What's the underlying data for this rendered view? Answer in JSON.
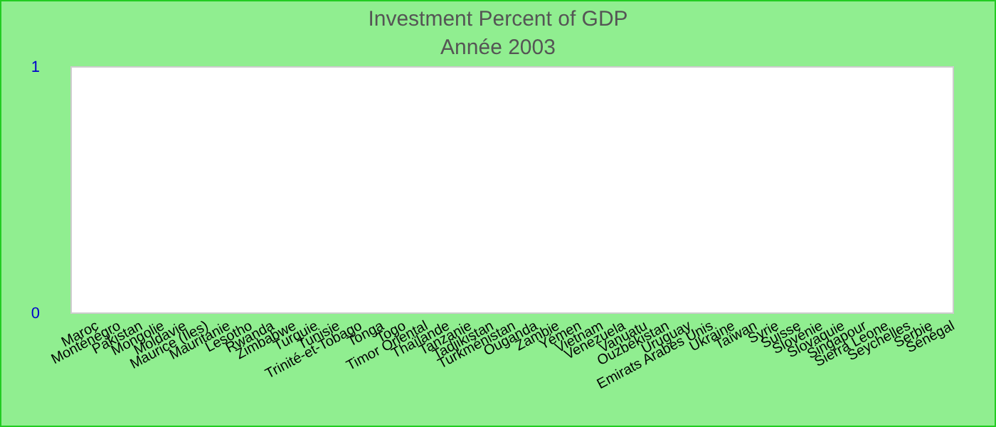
{
  "chart_data": {
    "type": "bar",
    "title": "Investment  Percent of GDP",
    "subtitle": "Année 2003",
    "categories": [
      "Maroc",
      "Monténégro",
      "Pakistan",
      "Mongolie",
      "Moldavie",
      "Maurice (Iles)",
      "Mauritanie",
      "Lesotho",
      "Rwanda",
      "Zimbabwe",
      "Turquie",
      "Tunisie",
      "Trinité-et-Tobago",
      "Tonga",
      "Togo",
      "Timor Oriental",
      "Thaïlande",
      "Tanzanie",
      "Tadjikistan",
      "Turkménistan",
      "Ouganda",
      "Zambie",
      "Yémen",
      "Vietnam",
      "Venezuela",
      "Vanuatu",
      "Ouzbékistan",
      "Uruguay",
      "Emirats Arabes Unis",
      "Ukraine",
      "Taïwan",
      "Syrie",
      "Suisse",
      "Slovénie",
      "Slovaquie",
      "Singapour",
      "Sierra Leone",
      "Seychelles",
      "Serbie",
      "Sénégal"
    ],
    "values": [
      0,
      0,
      0,
      0,
      0,
      0,
      0,
      0,
      0,
      0,
      0,
      0,
      0,
      0,
      0,
      0,
      0,
      0,
      0,
      0,
      0,
      0,
      0,
      0,
      0,
      0,
      0,
      0,
      0,
      0,
      0,
      0,
      0,
      0,
      0,
      0,
      0,
      0,
      0,
      0
    ],
    "ylim": [
      0,
      1
    ],
    "yticks": [
      0,
      1
    ],
    "grid": false
  }
}
